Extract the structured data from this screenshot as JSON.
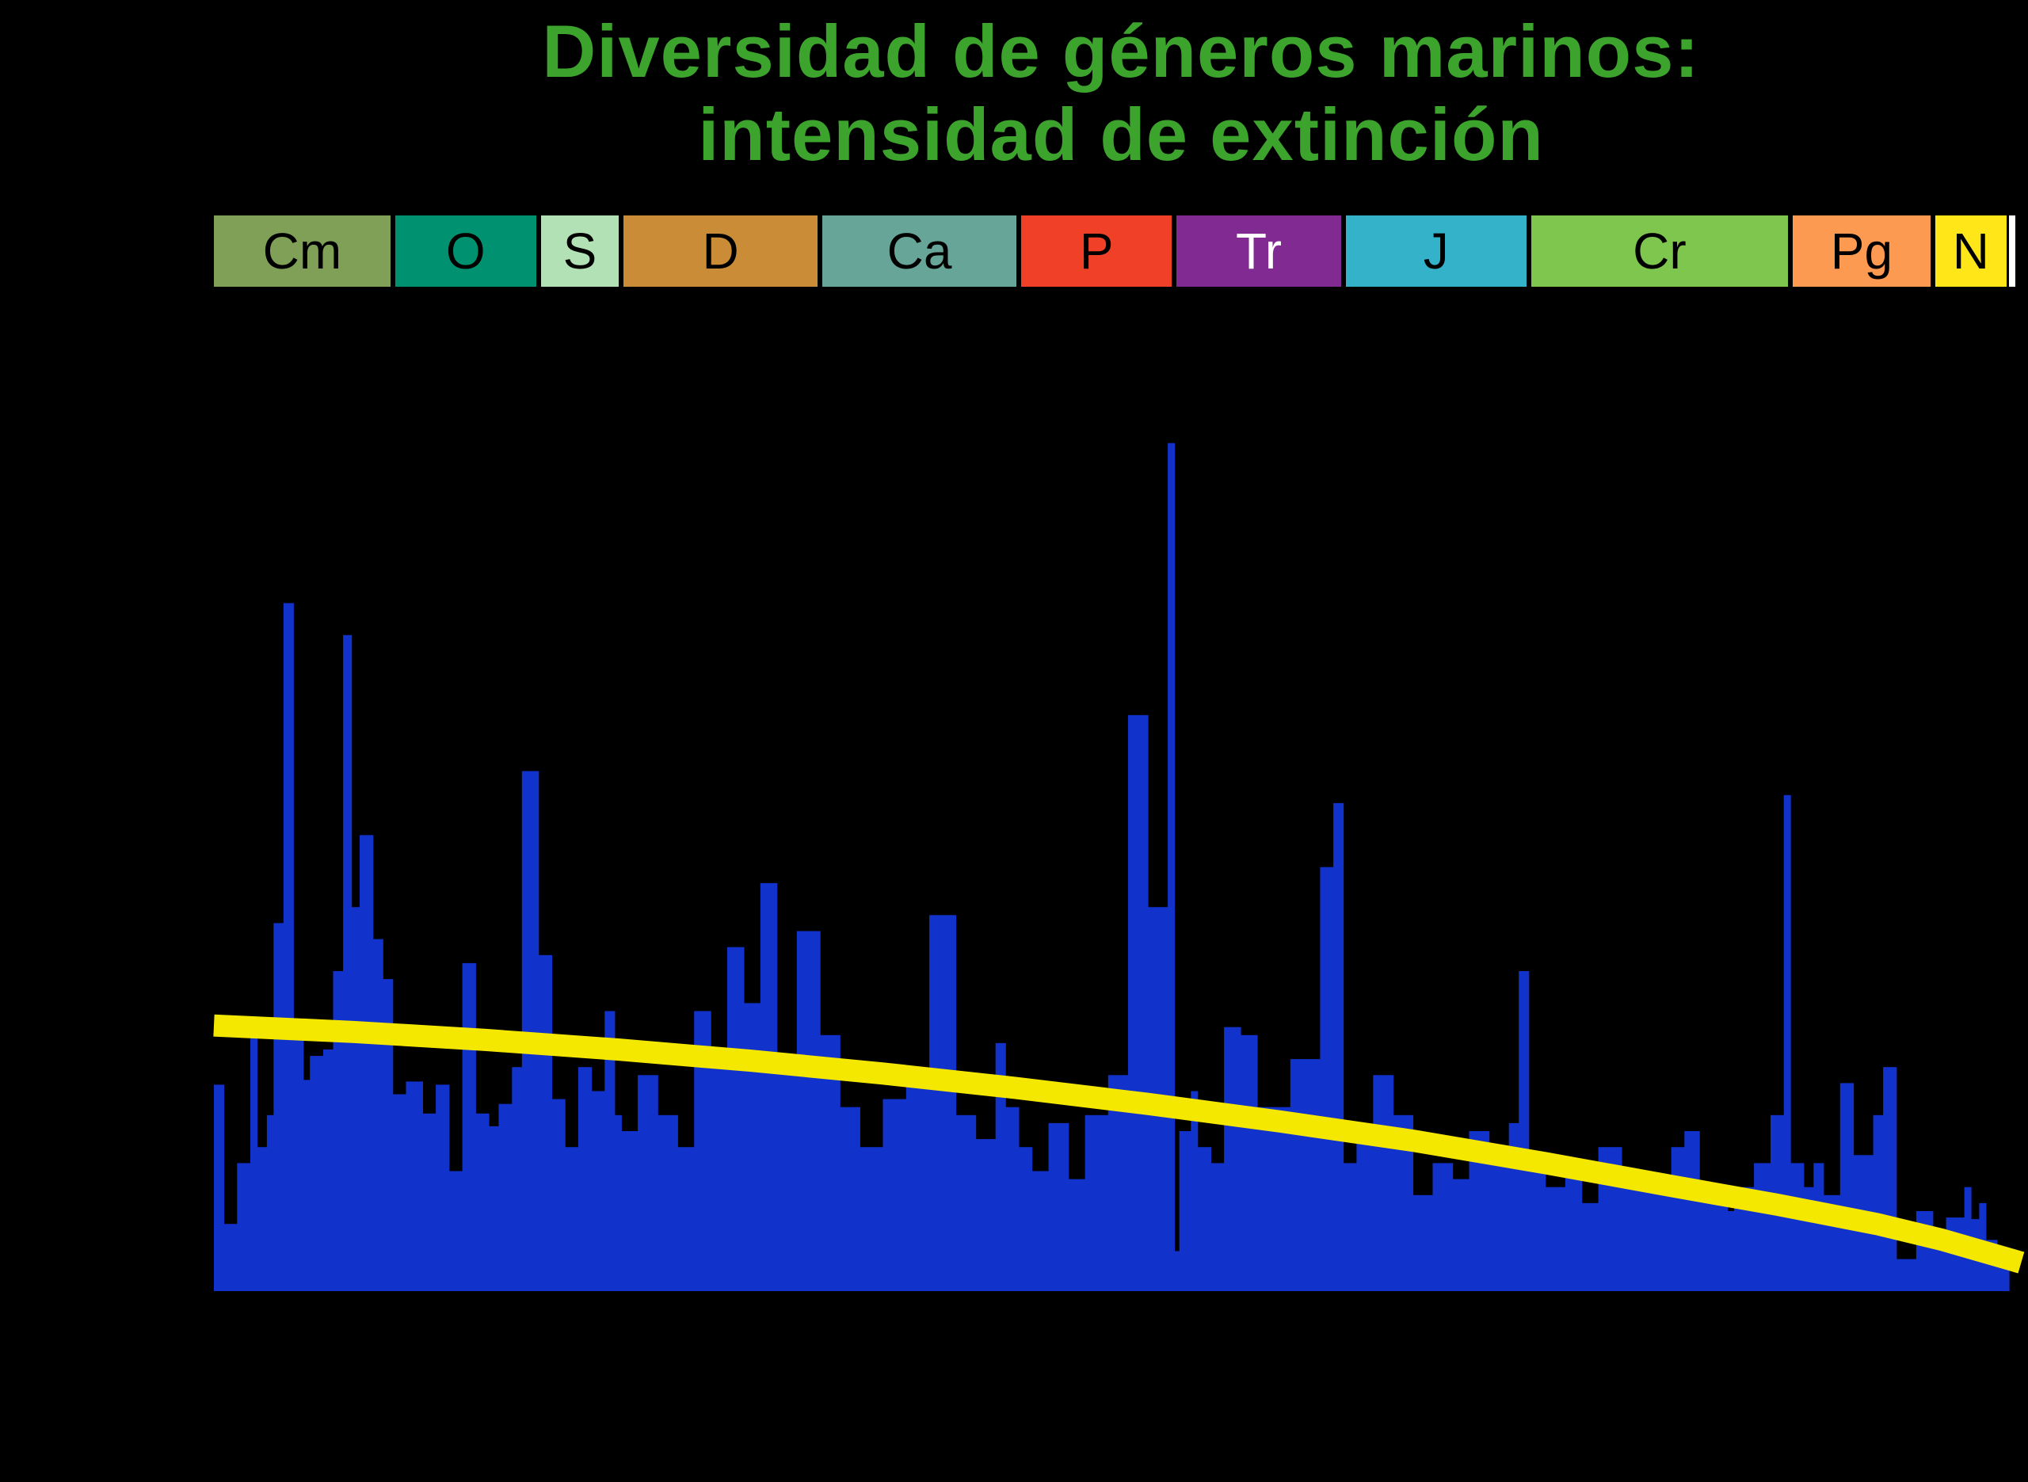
{
  "title": {
    "line1": "Diversidad de géneros marinos:",
    "line2": "intensidad de extinción",
    "color": "#3CA32C"
  },
  "colors": {
    "background": "#000000",
    "bar_blue": "#1233CB",
    "trend_yellow": "#F5E800",
    "band_edge_white": "#FFFFFF"
  },
  "chart_data": {
    "type": "bar",
    "title": "Diversidad de géneros marinos: intensidad de extinción",
    "x_axis": {
      "min_age_ma": 542,
      "max_age_ma": 0,
      "direction": "reversed",
      "tick_labels_visible": false
    },
    "y_axis": {
      "min": 0,
      "max": 57,
      "unit": "percent_extinction_estimated",
      "tick_labels_visible": false
    },
    "bar_color": "#1233CB",
    "periods": [
      {
        "label": "Cm",
        "age_start": 542,
        "age_end": 488,
        "color": "#7FA056",
        "text_color": "#000000"
      },
      {
        "label": "O",
        "age_start": 488,
        "age_end": 444,
        "color": "#009270",
        "text_color": "#000000"
      },
      {
        "label": "S",
        "age_start": 444,
        "age_end": 419,
        "color": "#B3E1B6",
        "text_color": "#000000"
      },
      {
        "label": "D",
        "age_start": 419,
        "age_end": 359,
        "color": "#CB8C37",
        "text_color": "#000000"
      },
      {
        "label": "Ca",
        "age_start": 359,
        "age_end": 299,
        "color": "#67A599",
        "text_color": "#000000"
      },
      {
        "label": "P",
        "age_start": 299,
        "age_end": 252,
        "color": "#F04028",
        "text_color": "#000000"
      },
      {
        "label": "Tr",
        "age_start": 252,
        "age_end": 201,
        "color": "#812B92",
        "text_color": "#FFFFFF"
      },
      {
        "label": "J",
        "age_start": 201,
        "age_end": 145,
        "color": "#34B2C9",
        "text_color": "#000000"
      },
      {
        "label": "Cr",
        "age_start": 145,
        "age_end": 66,
        "color": "#7FC64E",
        "text_color": "#000000"
      },
      {
        "label": "Pg",
        "age_start": 66,
        "age_end": 23,
        "color": "#FD9A52",
        "text_color": "#000000"
      },
      {
        "label": "N",
        "age_start": 23,
        "age_end": 0,
        "color": "#FFE619",
        "text_color": "#000000"
      }
    ],
    "bars": [
      [
        542,
        539,
        12.9
      ],
      [
        539,
        535,
        4.2
      ],
      [
        535,
        531,
        8.0
      ],
      [
        531,
        529,
        16.5
      ],
      [
        529,
        526,
        9.0
      ],
      [
        526,
        524,
        11.0
      ],
      [
        524,
        521,
        23.0
      ],
      [
        521,
        518,
        43.0
      ],
      [
        518,
        515,
        15.8
      ],
      [
        515,
        513,
        13.2
      ],
      [
        513,
        509,
        14.7
      ],
      [
        509,
        506,
        15.1
      ],
      [
        506,
        503,
        20.0
      ],
      [
        503,
        500.5,
        41.0
      ],
      [
        500.5,
        498,
        24.0
      ],
      [
        498,
        494,
        28.5
      ],
      [
        494,
        491,
        22.0
      ],
      [
        491,
        488,
        19.5
      ],
      [
        488,
        484,
        12.3
      ],
      [
        484,
        479,
        13.1
      ],
      [
        479,
        475,
        11.1
      ],
      [
        475,
        471,
        12.9
      ],
      [
        471,
        467,
        7.5
      ],
      [
        467,
        463,
        20.5
      ],
      [
        463,
        459,
        11.1
      ],
      [
        459,
        456,
        10.3
      ],
      [
        456,
        452,
        11.7
      ],
      [
        452,
        449,
        14.0
      ],
      [
        449,
        444,
        32.5
      ],
      [
        444,
        440,
        21.0
      ],
      [
        440,
        436,
        12.0
      ],
      [
        436,
        432,
        9.0
      ],
      [
        432,
        428,
        14.0
      ],
      [
        428,
        424,
        12.5
      ],
      [
        424,
        421,
        17.5
      ],
      [
        421,
        419,
        11.0
      ],
      [
        419,
        414,
        10.0
      ],
      [
        414,
        408,
        13.5
      ],
      [
        408,
        402,
        11.0
      ],
      [
        402,
        397,
        9.0
      ],
      [
        397,
        392,
        17.5
      ],
      [
        392,
        387,
        14.5
      ],
      [
        387,
        382,
        21.5
      ],
      [
        382,
        377,
        18.0
      ],
      [
        377,
        372,
        25.5
      ],
      [
        372,
        366,
        14.0
      ],
      [
        366,
        359,
        22.5
      ],
      [
        359,
        353,
        16.0
      ],
      [
        353,
        347,
        11.5
      ],
      [
        347,
        340,
        9.0
      ],
      [
        340,
        333,
        12.0
      ],
      [
        333,
        326,
        13.5
      ],
      [
        326,
        318,
        23.5
      ],
      [
        318,
        312,
        11.0
      ],
      [
        312,
        306,
        9.5
      ],
      [
        306,
        303,
        15.5
      ],
      [
        303,
        299,
        11.5
      ],
      [
        299,
        295,
        9.0
      ],
      [
        295,
        290,
        7.5
      ],
      [
        290,
        284,
        10.5
      ],
      [
        284,
        279,
        7.0
      ],
      [
        279,
        272,
        11.0
      ],
      [
        272,
        266,
        13.5
      ],
      [
        266,
        260,
        36.0
      ],
      [
        260,
        254,
        24.0
      ],
      [
        254,
        252,
        53.0
      ],
      [
        252,
        250.5,
        2.5
      ],
      [
        250.5,
        247,
        10.0
      ],
      [
        247,
        245,
        12.5
      ],
      [
        245,
        241,
        9.0
      ],
      [
        241,
        237,
        8.0
      ],
      [
        237,
        232,
        16.5
      ],
      [
        232,
        227,
        16.0
      ],
      [
        227,
        217,
        11.5
      ],
      [
        217,
        208,
        14.5
      ],
      [
        208,
        204,
        26.5
      ],
      [
        204,
        201,
        30.5
      ],
      [
        201,
        197,
        8.0
      ],
      [
        197,
        192,
        9.5
      ],
      [
        192,
        186,
        13.5
      ],
      [
        186,
        180,
        11.0
      ],
      [
        180,
        174,
        6.0
      ],
      [
        174,
        168,
        8.0
      ],
      [
        168,
        163,
        7.0
      ],
      [
        163,
        157,
        10.0
      ],
      [
        157,
        151,
        8.0
      ],
      [
        151,
        148,
        10.5
      ],
      [
        148,
        145,
        20.0
      ],
      [
        145,
        140,
        8.0
      ],
      [
        140,
        134,
        6.5
      ],
      [
        134,
        129,
        7.5
      ],
      [
        129,
        124,
        5.5
      ],
      [
        124,
        117,
        9.0
      ],
      [
        117,
        110,
        6.5
      ],
      [
        110,
        102,
        7.0
      ],
      [
        102,
        98,
        9.0
      ],
      [
        98,
        93.5,
        10.0
      ],
      [
        93.5,
        89,
        6.5
      ],
      [
        89,
        85,
        5.5
      ],
      [
        85,
        83,
        5.0
      ],
      [
        83,
        77,
        6.5
      ],
      [
        77,
        72,
        8.0
      ],
      [
        72,
        68,
        11.0
      ],
      [
        68,
        66,
        31.0
      ],
      [
        66,
        62,
        8.0
      ],
      [
        62,
        59,
        6.5
      ],
      [
        59,
        56,
        8.0
      ],
      [
        56,
        51,
        6.0
      ],
      [
        51,
        47,
        13.0
      ],
      [
        47,
        41,
        8.5
      ],
      [
        41,
        38,
        11.0
      ],
      [
        38,
        34,
        14.0
      ],
      [
        34,
        28,
        2.0
      ],
      [
        28,
        23,
        5.0
      ],
      [
        23,
        19,
        3.0
      ],
      [
        19,
        13.5,
        4.6
      ],
      [
        13.5,
        11.5,
        6.5
      ],
      [
        11.5,
        9,
        4.5
      ],
      [
        9,
        7,
        5.5
      ],
      [
        7,
        5.3,
        3.2
      ],
      [
        5.3,
        3.6,
        3.2
      ],
      [
        3.6,
        2,
        2.8
      ],
      [
        2,
        0.8,
        2.2
      ],
      [
        0.8,
        0,
        1.5
      ]
    ],
    "trend": {
      "color": "#F5E800",
      "stroke_width": 28,
      "points": [
        [
          542,
          16.6
        ],
        [
          500,
          16.2
        ],
        [
          460,
          15.7
        ],
        [
          420,
          15.1
        ],
        [
          380,
          14.4
        ],
        [
          340,
          13.6
        ],
        [
          300,
          12.7
        ],
        [
          260,
          11.7
        ],
        [
          220,
          10.6
        ],
        [
          180,
          9.4
        ],
        [
          140,
          8.0
        ],
        [
          100,
          6.5
        ],
        [
          70,
          5.4
        ],
        [
          40,
          4.2
        ],
        [
          20,
          3.2
        ],
        [
          0,
          2.0
        ]
      ]
    }
  }
}
